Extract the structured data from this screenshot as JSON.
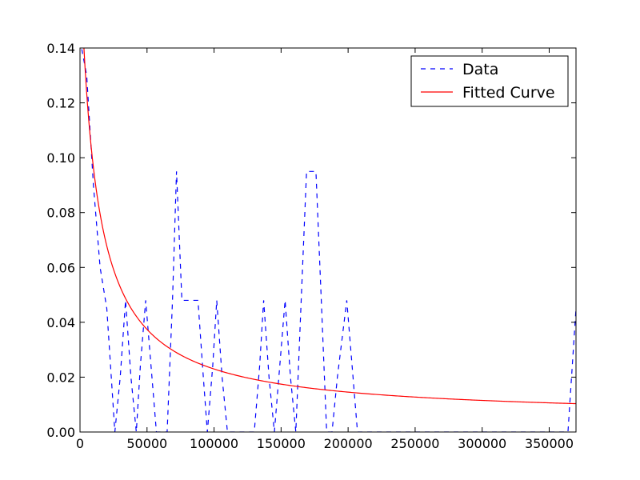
{
  "chart_data": {
    "type": "line",
    "xlim": [
      0,
      370000
    ],
    "ylim": [
      0,
      0.14
    ],
    "xticks": [
      0,
      50000,
      100000,
      150000,
      200000,
      250000,
      300000,
      350000
    ],
    "xtick_labels": [
      "0",
      "50000",
      "100000",
      "150000",
      "200000",
      "250000",
      "300000",
      "350000"
    ],
    "yticks": [
      0.0,
      0.02,
      0.04,
      0.06,
      0.08,
      0.1,
      0.12,
      0.14
    ],
    "ytick_labels": [
      "0.00",
      "0.02",
      "0.04",
      "0.06",
      "0.08",
      "0.10",
      "0.12",
      "0.14"
    ],
    "grid": false,
    "legend_position": "upper right",
    "legend": [
      {
        "label": "Data",
        "style": "dashed",
        "color": "#0000ff"
      },
      {
        "label": "Fitted Curve",
        "style": "solid",
        "color": "#ff0000"
      }
    ],
    "series": [
      {
        "name": "Data",
        "style": "dashed",
        "color": "#0000ff",
        "x": [
          0,
          5000,
          10000,
          15000,
          20000,
          26000,
          30000,
          34000,
          38000,
          42000,
          45000,
          49000,
          53000,
          57000,
          61000,
          65000,
          69000,
          72000,
          76000,
          80000,
          84000,
          88000,
          92000,
          95000,
          99000,
          102000,
          106000,
          110000,
          114000,
          118000,
          122000,
          126000,
          130000,
          134000,
          137000,
          141000,
          145000,
          149000,
          153000,
          157000,
          161000,
          165000,
          169000,
          172000,
          176000,
          180000,
          184000,
          188000,
          192000,
          196000,
          199000,
          203000,
          207000,
          211000,
          250000,
          300000,
          350000,
          360000,
          364000,
          370000
        ],
        "y": [
          0.143,
          0.13,
          0.09,
          0.06,
          0.045,
          0.0,
          0.02,
          0.048,
          0.02,
          0.0,
          0.024,
          0.048,
          0.024,
          0.0,
          0.0,
          0.0,
          0.048,
          0.095,
          0.048,
          0.048,
          0.048,
          0.048,
          0.02,
          0.0,
          0.024,
          0.048,
          0.02,
          0.0,
          0.0,
          0.0,
          0.0,
          0.0,
          0.0,
          0.024,
          0.048,
          0.02,
          0.0,
          0.024,
          0.048,
          0.02,
          0.0,
          0.048,
          0.095,
          0.095,
          0.095,
          0.048,
          0.0,
          0.0,
          0.02,
          0.036,
          0.048,
          0.024,
          0.0,
          0.0,
          0.0,
          0.0,
          0.0,
          0.0,
          0.0,
          0.045
        ]
      },
      {
        "name": "Fitted Curve",
        "style": "solid",
        "color": "#ff0000",
        "function": "a / (x + b) + c",
        "params": {
          "a": 2000,
          "b": 11900,
          "c": 0.0051
        },
        "x_range": [
          0,
          370000
        ]
      }
    ]
  }
}
